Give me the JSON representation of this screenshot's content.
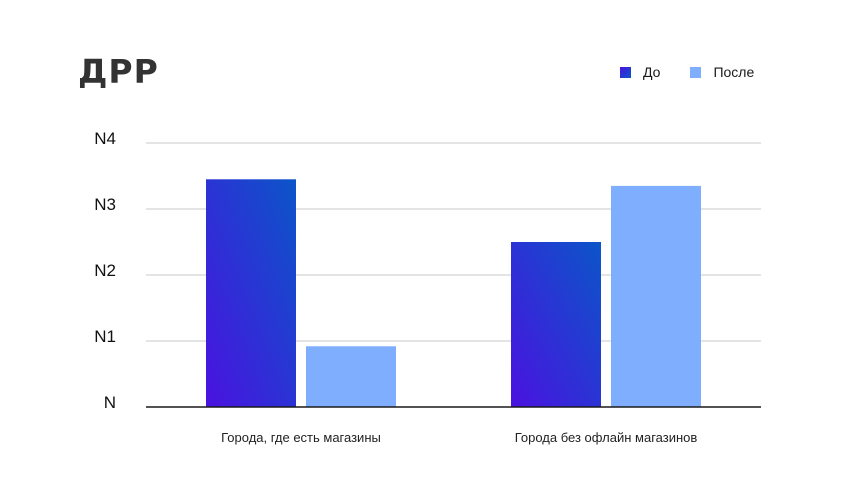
{
  "chart_data": {
    "type": "bar",
    "title": "ДРР",
    "categories": [
      "Города, где есть магазины",
      "Города без офлайн магазинов"
    ],
    "yticks": [
      "N",
      "N1",
      "N2",
      "N3",
      "N4"
    ],
    "ylim": [
      0,
      4
    ],
    "grid": true,
    "legend_position": "top-right",
    "series": [
      {
        "name": "До",
        "values": [
          3.45,
          2.5
        ],
        "color_start": "#4a12e0",
        "color_end": "#0b55c8"
      },
      {
        "name": "После",
        "values": [
          0.92,
          3.35
        ],
        "color": "#80aeff"
      }
    ]
  }
}
